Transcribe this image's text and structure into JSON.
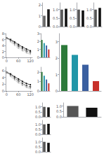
{
  "chart_data": [
    {
      "type": "bar",
      "categories": [
        null,
        null
      ],
      "values": [
        1.0,
        1.6
      ],
      "colors": [
        "#666666",
        "#1a1a1a"
      ],
      "ylim": [
        0,
        2.2
      ],
      "yticks": [
        0,
        1,
        2
      ],
      "grid": false,
      "tick_labels": "y"
    },
    {
      "type": "bar",
      "categories": [
        null,
        null
      ],
      "values": [
        1.0,
        1.05
      ],
      "colors": [
        "#555555",
        "#111111"
      ],
      "ylim": [
        0,
        1.4
      ],
      "yticks": [
        {
          "value": 0,
          "label": "0.0"
        },
        0.5,
        {
          "value": 1.0,
          "label": "1.0"
        }
      ],
      "grid": false,
      "tick_labels": "y"
    },
    {
      "type": "bar",
      "categories": [
        null,
        null
      ],
      "values": [
        1.0,
        0.95
      ],
      "colors": [
        "#555555",
        "#111111"
      ],
      "ylim": [
        0,
        1.4
      ],
      "yticks": [
        {
          "value": 0,
          "label": "0.0"
        },
        0.5,
        {
          "value": 1.0,
          "label": "1.0"
        }
      ],
      "grid": false,
      "tick_labels": "y"
    },
    {
      "type": "bar",
      "categories": [
        null,
        null
      ],
      "values": [
        1.0,
        1.1
      ],
      "colors": [
        "#555555",
        "#111111"
      ],
      "ylim": [
        0,
        1.4
      ],
      "yticks": [
        {
          "value": 0,
          "label": "0.0"
        },
        0.5,
        {
          "value": 1.0,
          "label": "1.0"
        }
      ],
      "grid": false,
      "tick_labels": "y"
    },
    {
      "type": "line",
      "x": [
        0,
        20,
        40,
        60,
        80,
        100,
        120
      ],
      "series": [
        {
          "values": [
            6.5,
            6.0,
            5.2,
            4.3,
            3.5,
            2.8,
            2.2
          ],
          "color": "#000000",
          "marker": "circle",
          "line_style": "solid"
        },
        {
          "values": [
            6.5,
            5.8,
            4.8,
            3.8,
            3.0,
            2.2,
            1.8
          ],
          "color": "#444444",
          "marker": "square",
          "line_style": "dashed"
        },
        {
          "values": [
            6.5,
            5.5,
            4.4,
            3.4,
            2.6,
            1.8,
            1.4
          ],
          "color": "#888888",
          "marker": "triangle",
          "line_style": "dotted"
        },
        {
          "values": [
            6.5,
            5.2,
            4.0,
            3.0,
            2.2,
            1.5,
            1.0
          ],
          "color": "#bbbbbb",
          "marker": "diamond",
          "line_style": "dashdot"
        }
      ],
      "xlim": [
        -5,
        130
      ],
      "xticks": [
        0,
        60,
        120
      ],
      "ylim": [
        0,
        8
      ],
      "yticks": [
        0,
        2,
        4,
        6,
        8
      ],
      "grid": false
    },
    {
      "type": "bar",
      "categories": [
        null,
        null,
        null,
        null
      ],
      "values": [
        2.2,
        1.8,
        1.5,
        1.0
      ],
      "colors": [
        "#2d7a3a",
        "#2196a8",
        "#3a5fa0",
        "#c8312a"
      ],
      "ylim": [
        0,
        3.0
      ],
      "yticks": [
        0,
        1,
        2,
        3
      ],
      "grid": false,
      "tick_labels": "y"
    },
    {
      "type": "bar",
      "categories": [
        null,
        null,
        null,
        null
      ],
      "values": [
        2.8,
        2.2,
        1.6,
        0.6
      ],
      "colors": [
        "#2d7a3a",
        "#2196a8",
        "#3a5fa0",
        "#c8312a"
      ],
      "ylim": [
        0,
        3.5
      ],
      "yticks": [
        0,
        1,
        2,
        3
      ],
      "grid": false,
      "tick_labels": "y"
    },
    {
      "type": "line",
      "x": [
        0,
        20,
        40,
        60,
        80,
        100,
        120
      ],
      "series": [
        {
          "values": [
            5.5,
            5.0,
            4.2,
            3.5,
            2.8,
            2.2,
            1.8
          ],
          "color": "#000000",
          "marker": "circle",
          "line_style": "solid"
        },
        {
          "values": [
            5.5,
            4.8,
            3.8,
            3.0,
            2.2,
            1.6,
            1.2
          ],
          "color": "#444444",
          "marker": "square",
          "line_style": "dashed"
        },
        {
          "values": [
            5.5,
            4.5,
            3.5,
            2.6,
            1.9,
            1.3,
            0.9
          ],
          "color": "#888888",
          "marker": "triangle",
          "line_style": "dotted"
        },
        {
          "values": [
            5.5,
            4.2,
            3.2,
            2.3,
            1.6,
            1.0,
            0.6
          ],
          "color": "#bbbbbb",
          "marker": "diamond",
          "line_style": "dashdot"
        }
      ],
      "xlim": [
        -5,
        130
      ],
      "xticks": [
        0,
        60,
        120
      ],
      "ylim": [
        0,
        7
      ],
      "yticks": [
        0,
        2,
        4,
        6
      ],
      "grid": false
    },
    {
      "type": "bar",
      "categories": [
        null,
        null,
        null,
        null
      ],
      "values": [
        2.0,
        1.6,
        1.2,
        0.8
      ],
      "colors": [
        "#2d7a3a",
        "#2196a8",
        "#3a5fa0",
        "#c8312a"
      ],
      "ylim": [
        0,
        2.5
      ],
      "yticks": [
        0,
        1,
        2
      ],
      "grid": false,
      "tick_labels": "y"
    },
    {
      "type": "bar",
      "categories": [
        null,
        null
      ],
      "values": [
        1.0,
        0.95
      ],
      "colors": [
        "#555555",
        "#111111"
      ],
      "ylim": [
        0,
        1.4
      ],
      "yticks": [
        {
          "value": 0,
          "label": "0.0"
        },
        0.5,
        {
          "value": 1.0,
          "label": "1.0"
        }
      ],
      "grid": false,
      "tick_labels": "y"
    },
    {
      "type": "bar",
      "categories": [
        null,
        null
      ],
      "values": [
        1.0,
        1.05
      ],
      "colors": [
        "#555555",
        "#111111"
      ],
      "ylim": [
        0,
        1.4
      ],
      "yticks": [
        {
          "value": 0,
          "label": "0.0"
        },
        0.5,
        {
          "value": 1.0,
          "label": "1.0"
        }
      ],
      "grid": false,
      "tick_labels": "y"
    },
    {
      "type": "bar",
      "categories": [
        null,
        null
      ],
      "values": [
        1.0,
        0.9
      ],
      "colors": [
        "#555555",
        "#111111"
      ],
      "ylim": [
        0,
        1.4
      ],
      "yticks": [
        {
          "value": 0,
          "label": "0.0"
        },
        0.5,
        {
          "value": 1.0,
          "label": "1.0"
        }
      ],
      "grid": false,
      "tick_labels": "y"
    },
    {
      "type": "bar",
      "categories": [
        null,
        null
      ],
      "values": [
        1.0,
        0.85
      ],
      "colors": [
        "#555555",
        "#111111"
      ],
      "ylim": [
        0,
        1.3
      ],
      "yticks": [
        {
          "value": 0,
          "label": "0.0"
        },
        0.5,
        {
          "value": 1.0,
          "label": "1.0"
        }
      ],
      "grid": false,
      "tick_labels": "y"
    }
  ]
}
